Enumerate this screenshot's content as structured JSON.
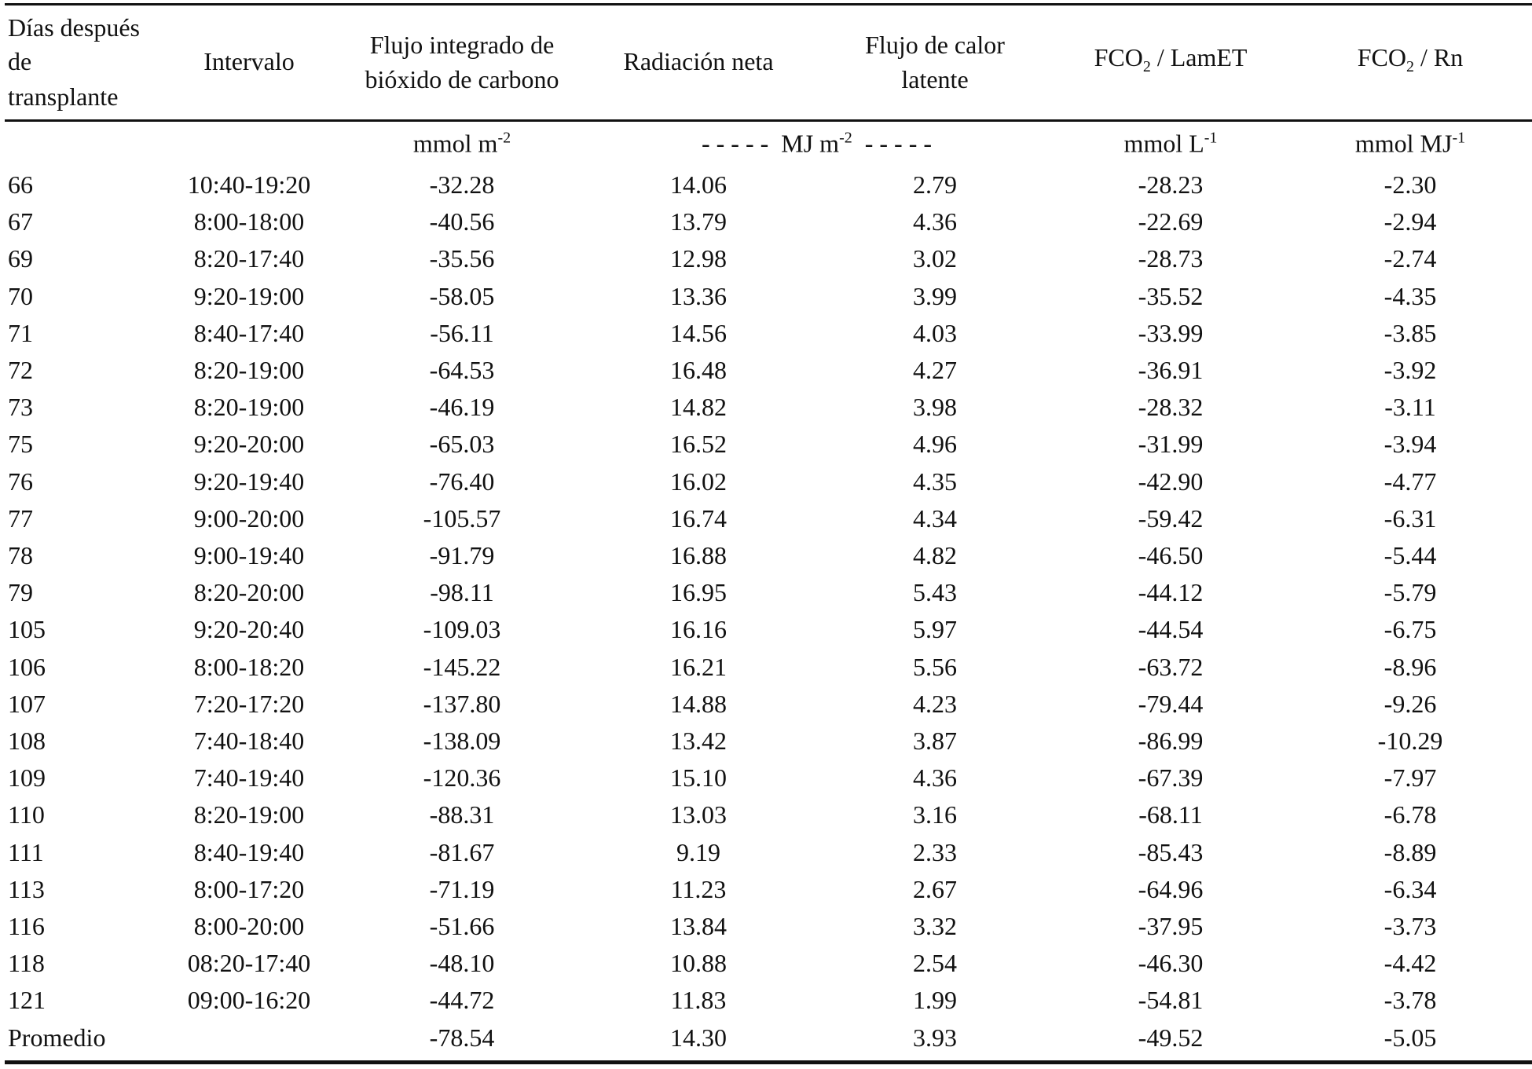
{
  "table": {
    "header": [
      {
        "lines": [
          "Días después",
          "de",
          "transplante"
        ]
      },
      {
        "lines": [
          "Intervalo"
        ]
      },
      {
        "lines": [
          "Flujo integrado de",
          "bióxido de carbono"
        ]
      },
      {
        "lines": [
          "Radiación neta"
        ]
      },
      {
        "lines": [
          "Flujo de calor",
          "latente"
        ]
      },
      {
        "main": "FCO",
        "sub": "2",
        "rest": " / LamET"
      },
      {
        "main": "FCO",
        "sub": "2",
        "rest": " / Rn"
      }
    ],
    "units": [
      {
        "col": 2,
        "main": "mmol m",
        "sup": "-2"
      },
      {
        "col": 3.5,
        "main": "- - - - -  MJ m",
        "sup": "-2",
        "rest": "  - - - - -"
      },
      {
        "col": 5,
        "main": "mmol L",
        "sup": "-1"
      },
      {
        "col": 6,
        "main": "mmol MJ",
        "sup": "-1"
      }
    ],
    "rows": [
      [
        "66",
        "10:40-19:20",
        "-32.28",
        "14.06",
        "2.79",
        "-28.23",
        "-2.30"
      ],
      [
        "67",
        "8:00-18:00",
        "-40.56",
        "13.79",
        "4.36",
        "-22.69",
        "-2.94"
      ],
      [
        "69",
        "8:20-17:40",
        "-35.56",
        "12.98",
        "3.02",
        "-28.73",
        "-2.74"
      ],
      [
        "70",
        "9:20-19:00",
        "-58.05",
        "13.36",
        "3.99",
        "-35.52",
        "-4.35"
      ],
      [
        "71",
        "8:40-17:40",
        "-56.11",
        "14.56",
        "4.03",
        "-33.99",
        "-3.85"
      ],
      [
        "72",
        "8:20-19:00",
        "-64.53",
        "16.48",
        "4.27",
        "-36.91",
        "-3.92"
      ],
      [
        "73",
        "8:20-19:00",
        "-46.19",
        "14.82",
        "3.98",
        "-28.32",
        "-3.11"
      ],
      [
        "75",
        "9:20-20:00",
        "-65.03",
        "16.52",
        "4.96",
        "-31.99",
        "-3.94"
      ],
      [
        "76",
        "9:20-19:40",
        "-76.40",
        "16.02",
        "4.35",
        "-42.90",
        "-4.77"
      ],
      [
        "77",
        "9:00-20:00",
        "-105.57",
        "16.74",
        "4.34",
        "-59.42",
        "-6.31"
      ],
      [
        "78",
        "9:00-19:40",
        "-91.79",
        "16.88",
        "4.82",
        "-46.50",
        "-5.44"
      ],
      [
        "79",
        "8:20-20:00",
        "-98.11",
        "16.95",
        "5.43",
        "-44.12",
        "-5.79"
      ],
      [
        "105",
        "9:20-20:40",
        "-109.03",
        "16.16",
        "5.97",
        "-44.54",
        "-6.75"
      ],
      [
        "106",
        "8:00-18:20",
        "-145.22",
        "16.21",
        "5.56",
        "-63.72",
        "-8.96"
      ],
      [
        "107",
        "7:20-17:20",
        "-137.80",
        "14.88",
        "4.23",
        "-79.44",
        "-9.26"
      ],
      [
        "108",
        "7:40-18:40",
        "-138.09",
        "13.42",
        "3.87",
        "-86.99",
        "-10.29"
      ],
      [
        "109",
        "7:40-19:40",
        "-120.36",
        "15.10",
        "4.36",
        "-67.39",
        "-7.97"
      ],
      [
        "110",
        "8:20-19:00",
        "-88.31",
        "13.03",
        "3.16",
        "-68.11",
        "-6.78"
      ],
      [
        "111",
        "8:40-19:40",
        "-81.67",
        "9.19",
        "2.33",
        "-85.43",
        "-8.89"
      ],
      [
        "113",
        "8:00-17:20",
        "-71.19",
        "11.23",
        "2.67",
        "-64.96",
        "-6.34"
      ],
      [
        "116",
        "8:00-20:00",
        "-51.66",
        "13.84",
        "3.32",
        "-37.95",
        "-3.73"
      ],
      [
        "118",
        "08:20-17:40",
        "-48.10",
        "10.88",
        "2.54",
        "-46.30",
        "-4.42"
      ],
      [
        "121",
        "09:00-16:20",
        "-44.72",
        "11.83",
        "1.99",
        "-54.81",
        "-3.78"
      ]
    ],
    "average": {
      "label": "Promedio",
      "values": [
        "-78.54",
        "14.30",
        "3.93",
        "-49.52",
        "-5.05"
      ]
    }
  }
}
